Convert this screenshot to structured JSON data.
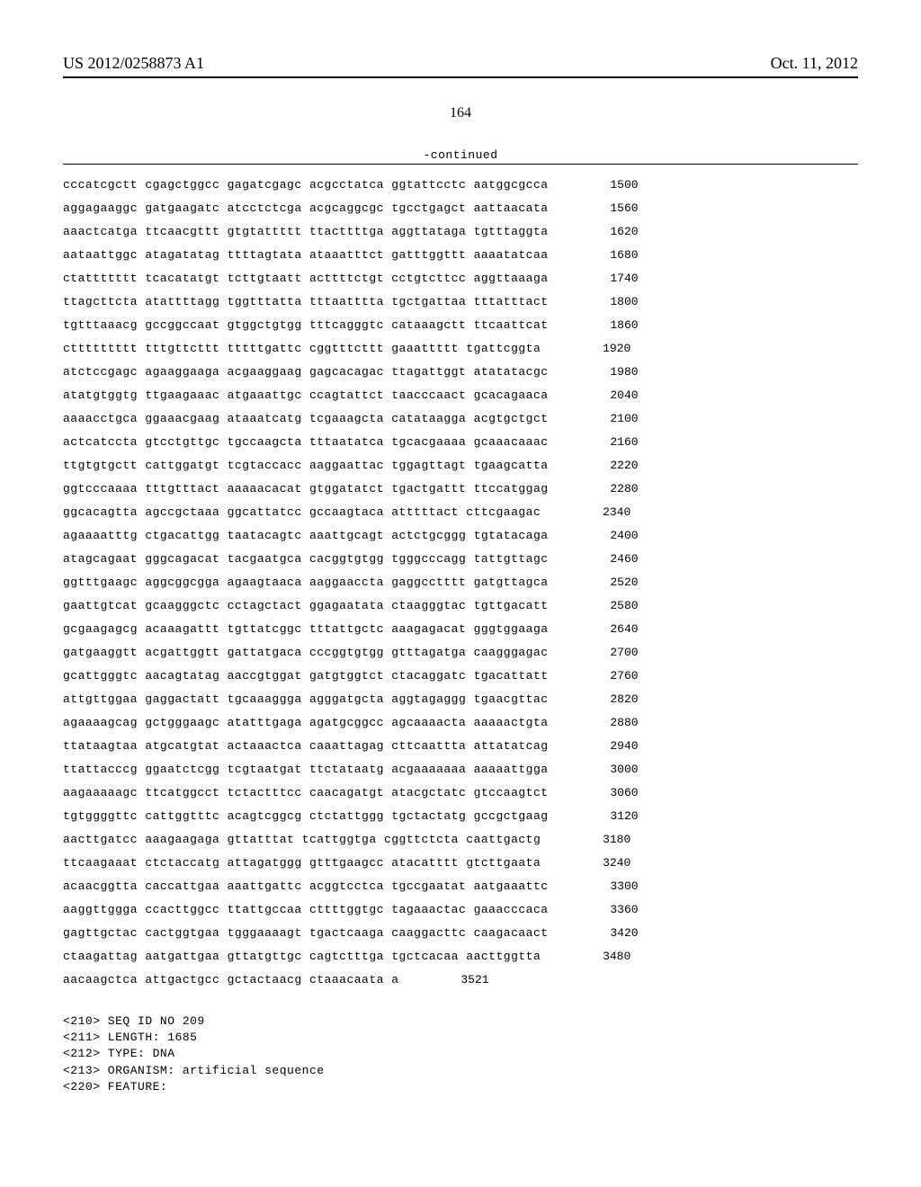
{
  "header": {
    "left": "US 2012/0258873 A1",
    "right": "Oct. 11, 2012"
  },
  "page_number": "164",
  "continued_label": "-continued",
  "sequence": {
    "rows": [
      {
        "seq": "cccatcgctt cgagctggcc gagatcgagc acgcctatca ggtattcctc aatggcgcca",
        "pos": "1500"
      },
      {
        "seq": "aggagaaggc gatgaagatc atcctctcga acgcaggcgc tgcctgagct aattaacata",
        "pos": "1560"
      },
      {
        "seq": "aaactcatga ttcaacgttt gtgtattttt ttacttttga aggttataga tgtttaggta",
        "pos": "1620"
      },
      {
        "seq": "aataattggc atagatatag ttttagtata ataaatttct gatttggttt aaaatatcaa",
        "pos": "1680"
      },
      {
        "seq": "ctattttttt tcacatatgt tcttgtaatt acttttctgt cctgtcttcc aggttaaaga",
        "pos": "1740"
      },
      {
        "seq": "ttagcttcta atattttagg tggtttatta tttaatttta tgctgattaa tttatttact",
        "pos": "1800"
      },
      {
        "seq": "tgtttaaacg gccggccaat gtggctgtgg tttcagggtc cataaagctt ttcaattcat",
        "pos": "1860"
      },
      {
        "seq": "cttttttttt tttgttcttt tttttgattc cggtttcttt gaaattttt tgattcggta",
        "pos": "1920"
      },
      {
        "seq": "atctccgagc agaaggaaga acgaaggaag gagcacagac ttagattggt atatatacgc",
        "pos": "1980"
      },
      {
        "seq": "atatgtggtg ttgaagaaac atgaaattgc ccagtattct taacccaact gcacagaaca",
        "pos": "2040"
      },
      {
        "seq": "aaaacctgca ggaaacgaag ataaatcatg tcgaaagcta catataagga acgtgctgct",
        "pos": "2100"
      },
      {
        "seq": "actcatccta gtcctgttgc tgccaagcta tttaatatca tgcacgaaaa gcaaacaaac",
        "pos": "2160"
      },
      {
        "seq": "ttgtgtgctt cattggatgt tcgtaccacc aaggaattac tggagttagt tgaagcatta",
        "pos": "2220"
      },
      {
        "seq": "ggtcccaaaa tttgtttact aaaaacacat gtggatatct tgactgattt ttccatggag",
        "pos": "2280"
      },
      {
        "seq": "ggcacagtta agccgctaaa ggcattatcc gccaagtaca atttttact cttcgaagac",
        "pos": "2340"
      },
      {
        "seq": "agaaaatttg ctgacattgg taatacagtc aaattgcagt actctgcggg tgtatacaga",
        "pos": "2400"
      },
      {
        "seq": "atagcagaat gggcagacat tacgaatgca cacggtgtgg tgggcccagg tattgttagc",
        "pos": "2460"
      },
      {
        "seq": "ggtttgaagc aggcggcgga agaagtaaca aaggaaccta gaggcctttt gatgttagca",
        "pos": "2520"
      },
      {
        "seq": "gaattgtcat gcaagggctc cctagctact ggagaatata ctaagggtac tgttgacatt",
        "pos": "2580"
      },
      {
        "seq": "gcgaagagcg acaaagattt tgttatcggc tttattgctc aaagagacat gggtggaaga",
        "pos": "2640"
      },
      {
        "seq": "gatgaaggtt acgattggtt gattatgaca cccggtgtgg gtttagatga caagggagac",
        "pos": "2700"
      },
      {
        "seq": "gcattgggtc aacagtatag aaccgtggat gatgtggtct ctacaggatc tgacattatt",
        "pos": "2760"
      },
      {
        "seq": "attgttggaa gaggactatt tgcaaaggga agggatgcta aggtagaggg tgaacgttac",
        "pos": "2820"
      },
      {
        "seq": "agaaaagcag gctgggaagc atatttgaga agatgcggcc agcaaaacta aaaaactgta",
        "pos": "2880"
      },
      {
        "seq": "ttataagtaa atgcatgtat actaaactca caaattagag cttcaattta attatatcag",
        "pos": "2940"
      },
      {
        "seq": "ttattacccg ggaatctcgg tcgtaatgat ttctataatg acgaaaaaaa aaaaattgga",
        "pos": "3000"
      },
      {
        "seq": "aagaaaaagc ttcatggcct tctactttcc caacagatgt atacgctatc gtccaagtct",
        "pos": "3060"
      },
      {
        "seq": "tgtggggttc cattggtttc acagtcggcg ctctattggg tgctactatg gccgctgaag",
        "pos": "3120"
      },
      {
        "seq": "aacttgatcc aaagaagaga gttatttat tcattggtga cggttctcta caattgactg",
        "pos": "3180"
      },
      {
        "seq": "ttcaagaaat ctctaccatg attagatggg gtttgaagcc atacatttt gtcttgaata",
        "pos": "3240"
      },
      {
        "seq": "acaacggtta caccattgaa aaattgattc acggtcctca tgccgaatat aatgaaattc",
        "pos": "3300"
      },
      {
        "seq": "aaggttggga ccacttggcc ttattgccaa cttttggtgc tagaaactac gaaacccaca",
        "pos": "3360"
      },
      {
        "seq": "gagttgctac cactggtgaa tgggaaaagt tgactcaaga caaggacttc caagacaact",
        "pos": "3420"
      },
      {
        "seq": "ctaagattag aatgattgaa gttatgttgc cagtctttga tgctcacaa aacttggtta",
        "pos": "3480"
      },
      {
        "seq": "aacaagctca attgactgcc gctactaacg ctaaacaata a",
        "pos": "3521"
      }
    ]
  },
  "meta": [
    "<210> SEQ ID NO 209",
    "<211> LENGTH: 1685",
    "<212> TYPE: DNA",
    "<213> ORGANISM: artificial sequence",
    "<220> FEATURE:"
  ]
}
